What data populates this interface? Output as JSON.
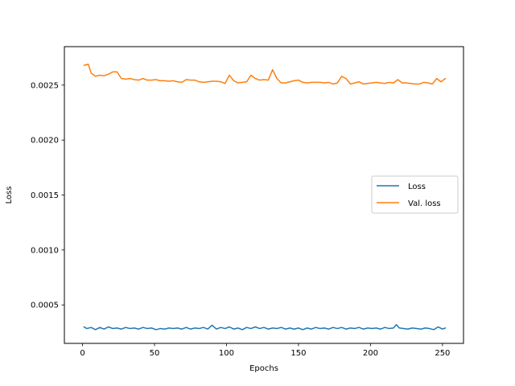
{
  "chart_data": {
    "type": "line",
    "title": "",
    "xlabel": "Epochs",
    "ylabel": "Loss",
    "xlim": [
      -12.6,
      264.6
    ],
    "ylim": [
      0.00015,
      0.00285
    ],
    "xticks": [
      0,
      50,
      100,
      150,
      200,
      250
    ],
    "xtick_labels": [
      "0",
      "50",
      "100",
      "150",
      "200",
      "250"
    ],
    "yticks": [
      0.0005,
      0.001,
      0.0015,
      0.002,
      0.0025
    ],
    "ytick_labels": [
      "0.0005",
      "0.0010",
      "0.0015",
      "0.0020",
      "0.0025"
    ],
    "grid": false,
    "legend_position": "center-right",
    "series": [
      {
        "name": "Loss",
        "color": "#1f77b4",
        "x": [
          1,
          3,
          6,
          9,
          12,
          15,
          18,
          21,
          24,
          27,
          30,
          33,
          36,
          39,
          42,
          45,
          48,
          51,
          54,
          57,
          60,
          63,
          66,
          69,
          72,
          75,
          78,
          81,
          84,
          87,
          90,
          93,
          96,
          99,
          102,
          105,
          108,
          111,
          114,
          117,
          120,
          123,
          126,
          129,
          132,
          135,
          138,
          141,
          144,
          147,
          150,
          153,
          156,
          159,
          162,
          165,
          168,
          171,
          174,
          177,
          180,
          183,
          186,
          189,
          192,
          195,
          198,
          201,
          204,
          207,
          210,
          213,
          216,
          218,
          220,
          223,
          226,
          229,
          232,
          235,
          238,
          241,
          244,
          247,
          250,
          252
        ],
        "y": [
          0.0003,
          0.000285,
          0.000295,
          0.000275,
          0.000295,
          0.00028,
          0.0003,
          0.000285,
          0.00029,
          0.00028,
          0.000295,
          0.000285,
          0.00029,
          0.00028,
          0.000295,
          0.000285,
          0.00029,
          0.000275,
          0.000285,
          0.00028,
          0.00029,
          0.000285,
          0.00029,
          0.00028,
          0.000295,
          0.00028,
          0.00029,
          0.000285,
          0.000295,
          0.00028,
          0.000315,
          0.00028,
          0.000295,
          0.000285,
          0.0003,
          0.00028,
          0.00029,
          0.000275,
          0.000295,
          0.000285,
          0.0003,
          0.000285,
          0.000295,
          0.00028,
          0.00029,
          0.000285,
          0.000295,
          0.00028,
          0.00029,
          0.00028,
          0.00029,
          0.000275,
          0.00029,
          0.00028,
          0.000295,
          0.000285,
          0.00029,
          0.00028,
          0.000295,
          0.000285,
          0.000295,
          0.00028,
          0.00029,
          0.000285,
          0.000295,
          0.00028,
          0.00029,
          0.000285,
          0.00029,
          0.00028,
          0.000295,
          0.000285,
          0.00029,
          0.00032,
          0.00029,
          0.000285,
          0.00028,
          0.00029,
          0.000285,
          0.00028,
          0.00029,
          0.000285,
          0.000275,
          0.0003,
          0.00028,
          0.00029
        ]
      },
      {
        "name": "Val. loss",
        "color": "#ff7f0e",
        "x": [
          1,
          4,
          6,
          9,
          12,
          15,
          18,
          21,
          24,
          27,
          30,
          33,
          36,
          39,
          42,
          45,
          48,
          51,
          54,
          57,
          60,
          63,
          66,
          69,
          72,
          75,
          78,
          81,
          84,
          87,
          90,
          93,
          96,
          99,
          102,
          105,
          108,
          111,
          114,
          117,
          120,
          123,
          126,
          129,
          132,
          135,
          138,
          141,
          144,
          147,
          150,
          153,
          156,
          159,
          162,
          165,
          168,
          171,
          174,
          177,
          180,
          183,
          186,
          189,
          192,
          195,
          198,
          201,
          204,
          207,
          210,
          213,
          216,
          219,
          222,
          225,
          228,
          231,
          234,
          237,
          240,
          243,
          246,
          249,
          252
        ],
        "y": [
          0.00268,
          0.00269,
          0.00261,
          0.00258,
          0.00259,
          0.002585,
          0.0026,
          0.00262,
          0.00262,
          0.00256,
          0.002555,
          0.00256,
          0.00255,
          0.002545,
          0.00256,
          0.002545,
          0.002545,
          0.00255,
          0.00254,
          0.00254,
          0.002535,
          0.00254,
          0.00253,
          0.002525,
          0.00255,
          0.002545,
          0.002545,
          0.00253,
          0.002525,
          0.00253,
          0.002535,
          0.002535,
          0.00253,
          0.002515,
          0.00259,
          0.00254,
          0.00252,
          0.002525,
          0.00253,
          0.00259,
          0.00256,
          0.002545,
          0.00255,
          0.002545,
          0.00264,
          0.00256,
          0.00252,
          0.00252,
          0.00253,
          0.00254,
          0.002545,
          0.002525,
          0.00252,
          0.002525,
          0.002525,
          0.002525,
          0.00252,
          0.002525,
          0.00251,
          0.00252,
          0.00258,
          0.00256,
          0.00251,
          0.00252,
          0.00253,
          0.00251,
          0.002515,
          0.00252,
          0.002525,
          0.00252,
          0.002515,
          0.002525,
          0.00252,
          0.00255,
          0.00252,
          0.00252,
          0.002515,
          0.00251,
          0.00251,
          0.002525,
          0.00252,
          0.00251,
          0.00256,
          0.00253,
          0.00256
        ]
      }
    ]
  }
}
